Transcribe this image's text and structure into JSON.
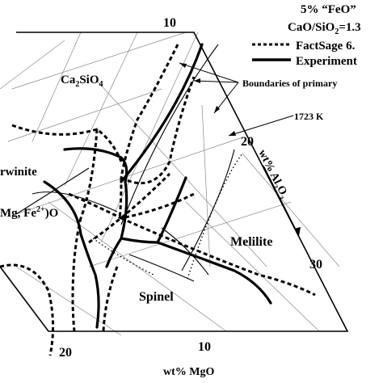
{
  "header": {
    "line1": "5% “FeO”",
    "ratio_base": "CaO/SiO",
    "ratio_sub": "2",
    "ratio_value": "=1.3"
  },
  "legend": {
    "factsage": "FactSage 6.",
    "experiment": "Experiment"
  },
  "annotations": {
    "boundaries": "Boundaries of primary",
    "temperature": "1723 K"
  },
  "phases": {
    "ca2sio4": {
      "a": "Ca",
      "s1": "2",
      "b": "SiO",
      "s2": "4"
    },
    "merwinite": "rwinite",
    "monoxide": {
      "a": "Mg, Fe",
      "sup": "2+",
      "b": ")O"
    },
    "melilite": "Melilite",
    "spinel": "Spinel"
  },
  "axes": {
    "al2o3": {
      "a": "wt% Al",
      "s1": "2",
      "b": "O",
      "s2": "3"
    },
    "mgo": "wt% MgO"
  },
  "ticks": {
    "top_10": "10",
    "right_20": "20",
    "right_30": "30",
    "bottom_20": "20",
    "bottom_10": "10"
  }
}
